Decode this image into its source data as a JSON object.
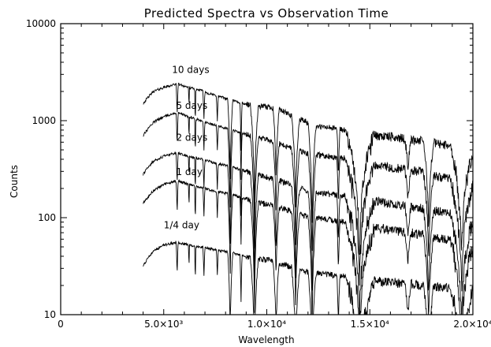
{
  "chart_data": {
    "type": "line",
    "title": "Predicted Spectra vs Observation Time",
    "xlabel": "Wavelength",
    "ylabel": "Counts",
    "xlim": [
      0,
      20000
    ],
    "ylim": [
      10,
      10000
    ],
    "y_scale": "log",
    "grid": false,
    "legend": "none",
    "x_ticks": [
      {
        "value": 0,
        "label": "0"
      },
      {
        "value": 5000,
        "label": "5.0×10³"
      },
      {
        "value": 10000,
        "label": "1.0×10⁴"
      },
      {
        "value": 15000,
        "label": "1.5×10⁴"
      },
      {
        "value": 20000,
        "label": "2.0×10⁴"
      }
    ],
    "y_ticks": [
      {
        "value": 10,
        "label": "10"
      },
      {
        "value": 100,
        "label": "100"
      },
      {
        "value": 1000,
        "label": "1000"
      },
      {
        "value": 10000,
        "label": "10000"
      }
    ],
    "series": [
      {
        "name": "10 days",
        "label_at": [
          5400,
          3100
        ],
        "x": [
          4000,
          4500,
          5000,
          5500,
          5600,
          5800,
          6200,
          6800,
          7200,
          7600,
          8200,
          8600,
          9000,
          9400,
          9800,
          10200,
          10600,
          11000,
          11400,
          11800,
          12200,
          12600,
          13000,
          13500,
          14000,
          14500,
          15000,
          15500,
          16000,
          16500,
          17000,
          17500,
          18000,
          18500,
          19000,
          19500,
          20000
        ],
        "y": [
          1500,
          2000,
          2200,
          2350,
          2400,
          2350,
          2200,
          2050,
          1900,
          1800,
          1650,
          1550,
          1480,
          1420,
          1400,
          1380,
          1300,
          1180,
          1100,
          1000,
          900,
          860,
          850,
          820,
          780,
          760,
          720,
          700,
          680,
          660,
          640,
          620,
          600,
          570,
          550,
          500,
          450
        ]
      },
      {
        "name": "5 days",
        "label_at": [
          5600,
          1320
        ],
        "x": [
          4000,
          4500,
          5000,
          5500,
          5600,
          5800,
          6200,
          6800,
          7200,
          7600,
          8200,
          8600,
          9000,
          9400,
          9800,
          10200,
          10600,
          11000,
          11400,
          11800,
          12200,
          12600,
          13000,
          13500,
          14000,
          14500,
          15000,
          15500,
          16000,
          16500,
          17000,
          17500,
          18000,
          18500,
          19000,
          19500,
          20000
        ],
        "y": [
          700,
          960,
          1100,
          1180,
          1200,
          1180,
          1100,
          1000,
          940,
          880,
          820,
          760,
          720,
          680,
          650,
          620,
          580,
          540,
          500,
          470,
          450,
          440,
          430,
          420,
          400,
          380,
          360,
          340,
          330,
          320,
          310,
          300,
          280,
          260,
          250,
          230,
          210
        ]
      },
      {
        "name": "2 days",
        "label_at": [
          5600,
          620
        ],
        "x": [
          4000,
          4500,
          5000,
          5500,
          5600,
          5800,
          6200,
          6800,
          7200,
          7600,
          8200,
          8600,
          9000,
          9400,
          9800,
          10200,
          10600,
          11000,
          11400,
          11800,
          12200,
          12600,
          13000,
          13500,
          14000,
          14500,
          15000,
          15500,
          16000,
          16500,
          17000,
          17500,
          18000,
          18500,
          19000,
          19500,
          20000
        ],
        "y": [
          280,
          380,
          430,
          460,
          470,
          460,
          430,
          400,
          380,
          360,
          340,
          320,
          300,
          280,
          270,
          255,
          240,
          225,
          210,
          195,
          185,
          180,
          175,
          170,
          165,
          160,
          150,
          145,
          140,
          135,
          130,
          125,
          120,
          115,
          110,
          100,
          95
        ]
      },
      {
        "name": "1 day",
        "label_at": [
          5600,
          275
        ],
        "x": [
          4000,
          4500,
          5000,
          5500,
          5600,
          5800,
          6200,
          6800,
          7200,
          7600,
          8200,
          8600,
          9000,
          9400,
          9800,
          10200,
          10600,
          11000,
          11400,
          11800,
          12200,
          12600,
          13000,
          13500,
          14000,
          14500,
          15000,
          15500,
          16000,
          16500,
          17000,
          17500,
          18000,
          18500,
          19000,
          19500,
          20000
        ],
        "y": [
          140,
          190,
          220,
          235,
          240,
          235,
          220,
          205,
          195,
          185,
          175,
          165,
          155,
          145,
          140,
          135,
          128,
          120,
          112,
          105,
          100,
          98,
          95,
          92,
          88,
          85,
          80,
          78,
          75,
          72,
          70,
          67,
          64,
          61,
          58,
          55,
          50
        ]
      },
      {
        "name": "1/4 day",
        "label_at": [
          5000,
          78
        ],
        "x": [
          4000,
          4500,
          5000,
          5500,
          5600,
          5800,
          6200,
          6800,
          7200,
          7600,
          8200,
          8600,
          9000,
          9400,
          9800,
          10200,
          10600,
          11000,
          11400,
          11800,
          12200,
          12600,
          13000,
          13500,
          14000,
          14500,
          15000,
          15500,
          16000,
          16500,
          17000,
          17500,
          18000,
          18500,
          19000,
          19500,
          20000
        ],
        "y": [
          32,
          45,
          52,
          55,
          56,
          55,
          52,
          50,
          48,
          46,
          44,
          42,
          40,
          38,
          37,
          36,
          34,
          32,
          30,
          28,
          27,
          27,
          26,
          25,
          25,
          24,
          23,
          22,
          22,
          21,
          21,
          20,
          20,
          19,
          19,
          18,
          17
        ]
      }
    ]
  }
}
